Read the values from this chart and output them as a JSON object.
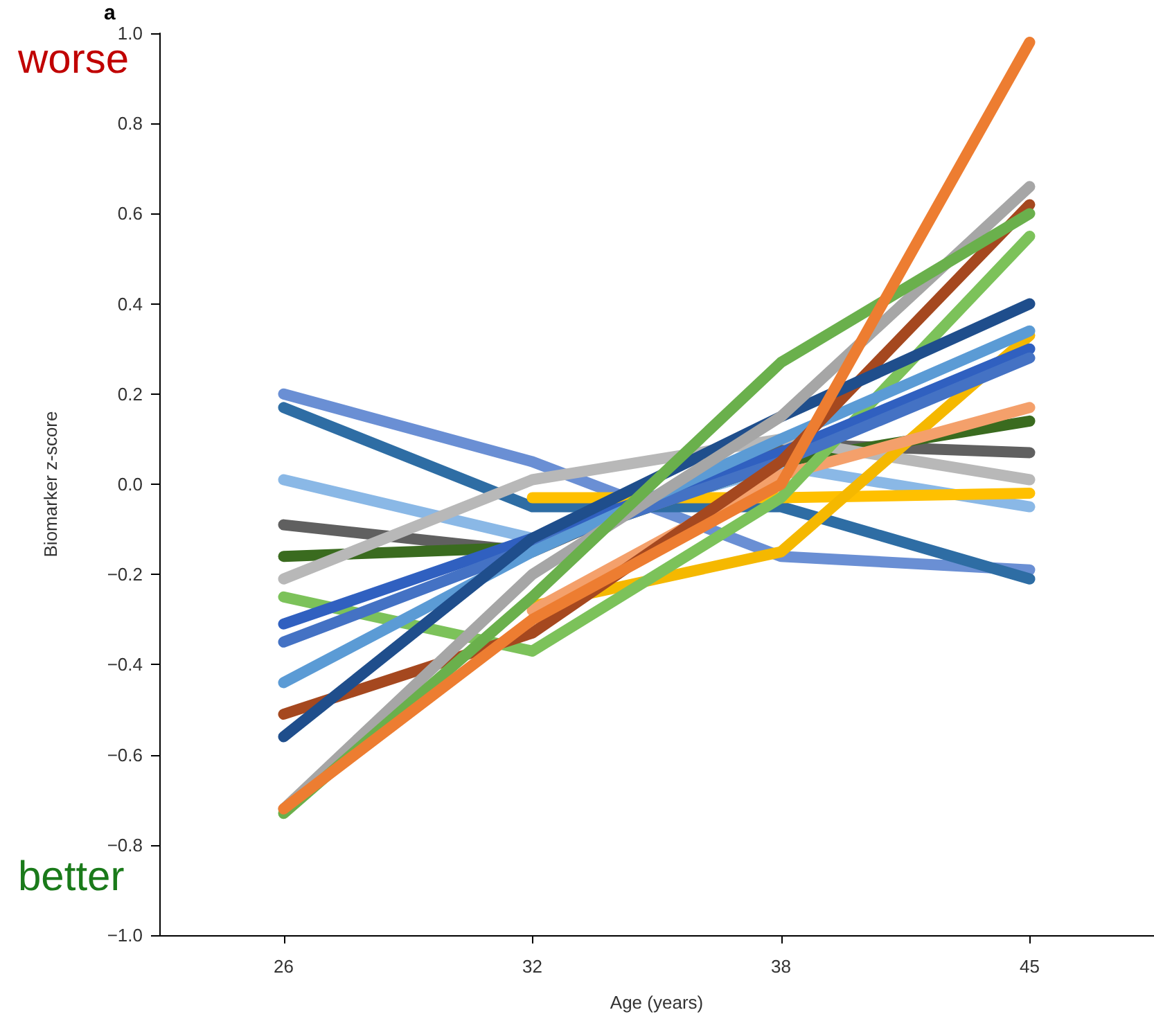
{
  "chart_data": {
    "type": "line",
    "xlabel": "Age (years)",
    "ylabel": "Biomarker z-score",
    "annotations": [
      "a",
      "worse",
      "better"
    ],
    "categories": [
      "26",
      "32",
      "38",
      "45"
    ],
    "ylim": [
      -1.0,
      1.0
    ],
    "yticks": [
      {
        "value": -1.0,
        "label": "−1.0"
      },
      {
        "value": -0.8,
        "label": "−0.8"
      },
      {
        "value": -0.6,
        "label": "−0.6"
      },
      {
        "value": -0.4,
        "label": "−0.4"
      },
      {
        "value": -0.2,
        "label": "−0.2"
      },
      {
        "value": 0,
        "label": "0.0"
      },
      {
        "value": 0.2,
        "label": "0.2"
      },
      {
        "value": 0.4,
        "label": "0.4"
      },
      {
        "value": 0.6,
        "label": "0.6"
      },
      {
        "value": 0.8,
        "label": "0.8"
      },
      {
        "value": 1.0,
        "label": "1.0"
      }
    ],
    "grid": false,
    "marker": "none",
    "line_style": "solid",
    "series": [
      {
        "color": "#6a8fd4",
        "values": [
          0.2,
          0.05,
          -0.16,
          -0.19
        ]
      },
      {
        "color": "#2e6da4",
        "values": [
          0.17,
          -0.05,
          -0.05,
          -0.21
        ]
      },
      {
        "color": "#8ab8e6",
        "values": [
          0.01,
          -0.12,
          0.04,
          -0.05
        ]
      },
      {
        "color": "#606060",
        "values": [
          -0.09,
          -0.15,
          0.09,
          0.07
        ]
      },
      {
        "color": "#3a6b1f",
        "values": [
          -0.16,
          -0.14,
          0.05,
          0.14
        ]
      },
      {
        "color": "#b8b8b8",
        "values": [
          -0.21,
          0.01,
          0.1,
          0.01
        ]
      },
      {
        "color": "#ffc000",
        "values": [
          null,
          -0.03,
          -0.03,
          -0.02
        ]
      },
      {
        "color": "#f5b800",
        "values": [
          null,
          -0.27,
          -0.15,
          0.33
        ]
      },
      {
        "color": "#f4a06b",
        "values": [
          null,
          -0.28,
          0.02,
          0.17
        ]
      },
      {
        "color": "#7cc25a",
        "values": [
          -0.25,
          -0.37,
          -0.03,
          0.55
        ]
      },
      {
        "color": "#3060c0",
        "values": [
          -0.31,
          -0.12,
          0.07,
          0.3
        ]
      },
      {
        "color": "#4472c4",
        "values": [
          -0.35,
          -0.14,
          0.05,
          0.28
        ]
      },
      {
        "color": "#5b9bd5",
        "values": [
          -0.44,
          -0.15,
          0.1,
          0.34
        ]
      },
      {
        "color": "#a5481f",
        "values": [
          -0.51,
          -0.33,
          0.05,
          0.62
        ]
      },
      {
        "color": "#1f4e8c",
        "values": [
          -0.56,
          -0.12,
          0.15,
          0.4
        ]
      },
      {
        "color": "#a6a6a6",
        "values": [
          -0.72,
          -0.2,
          0.15,
          0.66
        ]
      },
      {
        "color": "#6ab04c",
        "values": [
          -0.73,
          -0.25,
          0.27,
          0.6
        ]
      },
      {
        "color": "#ed7d31",
        "values": [
          -0.72,
          -0.3,
          0.0,
          0.98
        ]
      }
    ]
  }
}
